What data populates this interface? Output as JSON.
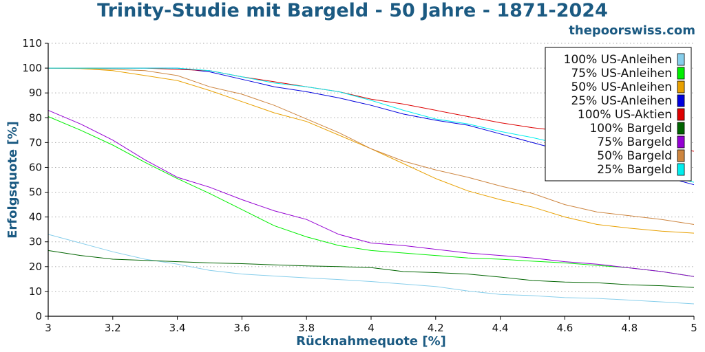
{
  "header": {
    "title": "Trinity-Studie mit Bargeld - 50 Jahre - 1871-2024",
    "site": "thepoorswiss.com"
  },
  "chart_data": {
    "type": "line",
    "title": "Trinity-Studie mit Bargeld - 50 Jahre - 1871-2024",
    "xlabel": "Rücknahmequote [%]",
    "ylabel": "Erfolgsquote [%]",
    "xlim": [
      3,
      5
    ],
    "ylim": [
      0,
      110
    ],
    "xticks": [
      "3",
      "3.2",
      "3.4",
      "3.6",
      "3.8",
      "4",
      "4.2",
      "4.4",
      "4.6",
      "4.8",
      "5"
    ],
    "yticks": [
      "0",
      "10",
      "20",
      "30",
      "40",
      "50",
      "60",
      "70",
      "80",
      "90",
      "100",
      "110"
    ],
    "grid": "horizontal dotted",
    "legend_position": "top-right",
    "x": [
      3.0,
      3.1,
      3.2,
      3.3,
      3.4,
      3.5,
      3.6,
      3.7,
      3.8,
      3.9,
      4.0,
      4.1,
      4.2,
      4.3,
      4.4,
      4.5,
      4.6,
      4.7,
      4.8,
      4.9,
      5.0
    ],
    "series": [
      {
        "name": "100% US-Anleihen",
        "color": "#87ceeb",
        "values": [
          33,
          29.5,
          26,
          23,
          21,
          18.5,
          17,
          16.2,
          15.5,
          14.8,
          14,
          13,
          12,
          10.2,
          8.8,
          8.3,
          7.5,
          7.2,
          6.5,
          5.8,
          5
        ]
      },
      {
        "name": "75% US-Anleihen",
        "color": "#00ee00",
        "values": [
          80.5,
          75,
          69,
          62,
          55.5,
          49.5,
          43,
          36.5,
          32,
          28.5,
          26.5,
          25.5,
          24.5,
          23.5,
          23,
          22.2,
          21.5,
          20.5,
          19.5,
          18,
          16
        ]
      },
      {
        "name": "50% US-Anleihen",
        "color": "#e8a000",
        "values": [
          100,
          99.8,
          99,
          97,
          95,
          91,
          86.5,
          82,
          78.5,
          73,
          67.5,
          61.5,
          55.5,
          50.5,
          47,
          44,
          40,
          37,
          35.5,
          34.3,
          33.5
        ]
      },
      {
        "name": "25% US-Anleihen",
        "color": "#0000dd",
        "values": [
          100,
          100,
          100,
          100,
          100,
          98.5,
          95.5,
          92.5,
          90.5,
          88,
          85,
          81.5,
          79,
          77,
          73.5,
          70,
          66.5,
          63.5,
          59.5,
          56.5,
          53
        ]
      },
      {
        "name": "100% US-Aktien",
        "color": "#dd0000",
        "values": [
          100,
          100,
          100,
          100,
          99.5,
          99,
          96.5,
          94.5,
          92.5,
          90.5,
          87.5,
          85.5,
          83,
          80.5,
          78,
          76,
          74.5,
          72.5,
          70.5,
          68.5,
          66.5
        ]
      },
      {
        "name": "100% Bargeld",
        "color": "#006400",
        "values": [
          26.5,
          24.5,
          23,
          22.5,
          22,
          21.5,
          21.2,
          20.7,
          20.3,
          20,
          19.6,
          18,
          17.6,
          17,
          15.8,
          14.4,
          13.8,
          13.5,
          12.7,
          12.3,
          11.6
        ]
      },
      {
        "name": "75% Bargeld",
        "color": "#9400d3",
        "values": [
          83,
          77.5,
          71,
          63,
          56,
          52,
          47,
          42.5,
          39,
          33,
          29.5,
          28.5,
          27,
          25.5,
          24.5,
          23.5,
          22,
          21,
          19.5,
          18,
          16
        ]
      },
      {
        "name": "50% Bargeld",
        "color": "#cd853f",
        "values": [
          100,
          100,
          99.5,
          99,
          97,
          92.5,
          89.5,
          85,
          79.5,
          74,
          67.5,
          62.5,
          59,
          56,
          52.5,
          49.5,
          45,
          42,
          40.5,
          39,
          37
        ]
      },
      {
        "name": "25% Bargeld",
        "color": "#00eeee",
        "values": [
          100,
          100,
          100,
          100,
          100,
          99,
          96.5,
          94,
          92.5,
          90.5,
          87,
          83,
          79.5,
          77.5,
          74.5,
          72,
          69,
          65.5,
          61,
          57,
          54
        ]
      }
    ]
  }
}
